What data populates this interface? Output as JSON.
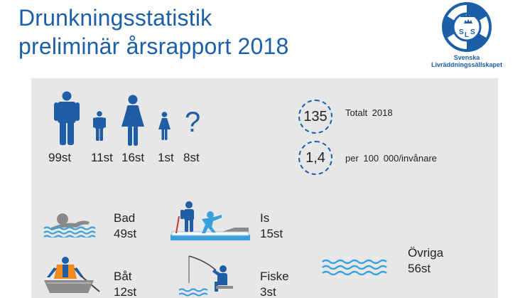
{
  "header": {
    "title_line1": "Drunkningsstatistik",
    "title_line2": "preliminär  årsrapport  2018"
  },
  "logo": {
    "letters": [
      "S",
      "L",
      "S"
    ],
    "line1": "Svenska",
    "line2": "Livräddningssällskapet"
  },
  "figures": [
    {
      "icon": "man-icon",
      "count": "99st"
    },
    {
      "icon": "boy-icon",
      "count": "11st"
    },
    {
      "icon": "woman-icon",
      "count": "16st"
    },
    {
      "icon": "girl-icon",
      "count": "1st"
    },
    {
      "icon": "question-mark-icon",
      "symbol": "?",
      "count": "8st"
    }
  ],
  "stats": [
    {
      "value": "135",
      "label": "Totalt  2018"
    },
    {
      "value": "1,4",
      "label": "per  100  000/invånare"
    }
  ],
  "categories": [
    {
      "icon": "swimmer-icon",
      "name": "Bad",
      "count": "49st"
    },
    {
      "icon": "ice-icon",
      "name": "Is",
      "count": "15st"
    },
    {
      "icon": "water-icon",
      "name": "Övriga",
      "count": "56st"
    },
    {
      "icon": "boat-icon",
      "name": "Båt",
      "count": "12st"
    },
    {
      "icon": "fishing-icon",
      "name": "Fiske",
      "count": "3st"
    }
  ],
  "colors": {
    "brand_blue": "#1b5fa8",
    "icon_blue": "#1f5da5",
    "panel_gray": "#e7e7e7",
    "water_blue": "#3aa0dd",
    "icon_gray": "#8a8a8a",
    "lifejacket_orange": "#f08a1c"
  }
}
